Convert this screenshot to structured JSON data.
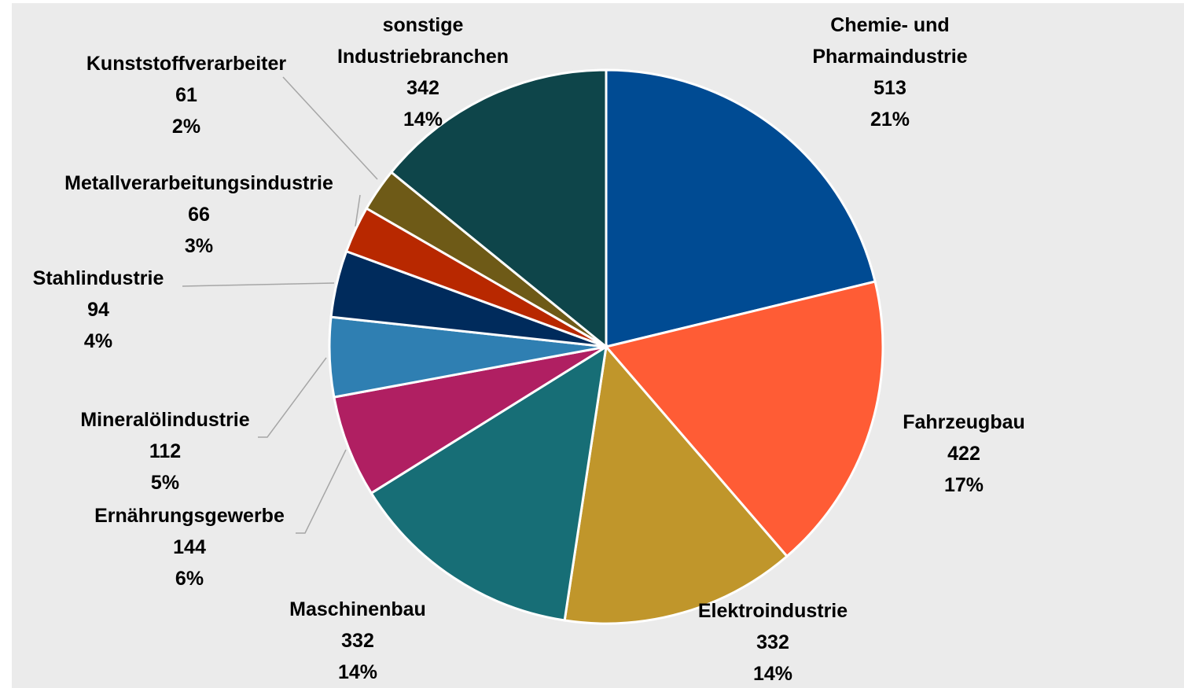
{
  "chart_data": {
    "type": "pie",
    "categories": [
      "Chemie- und Pharmaindustrie",
      "Fahrzeugbau",
      "Elektroindustrie",
      "Maschinenbau",
      "Ernährungsgewerbe",
      "Mineralölindustrie",
      "Stahlindustrie",
      "Metallverarbeitungsindustrie",
      "Kunststoffverarbeiter",
      "sonstige Industriebranchen"
    ],
    "values": [
      513,
      422,
      332,
      332,
      144,
      112,
      94,
      66,
      61,
      342
    ],
    "percent_labels": [
      "21%",
      "17%",
      "14%",
      "14%",
      "6%",
      "5%",
      "4%",
      "3%",
      "2%",
      "14%"
    ],
    "colors": [
      "#004b93",
      "#ff5c35",
      "#c0962b",
      "#176e76",
      "#b01f62",
      "#2f7fb2",
      "#002b5c",
      "#b82800",
      "#6e5a17",
      "#0e454a"
    ]
  }
}
